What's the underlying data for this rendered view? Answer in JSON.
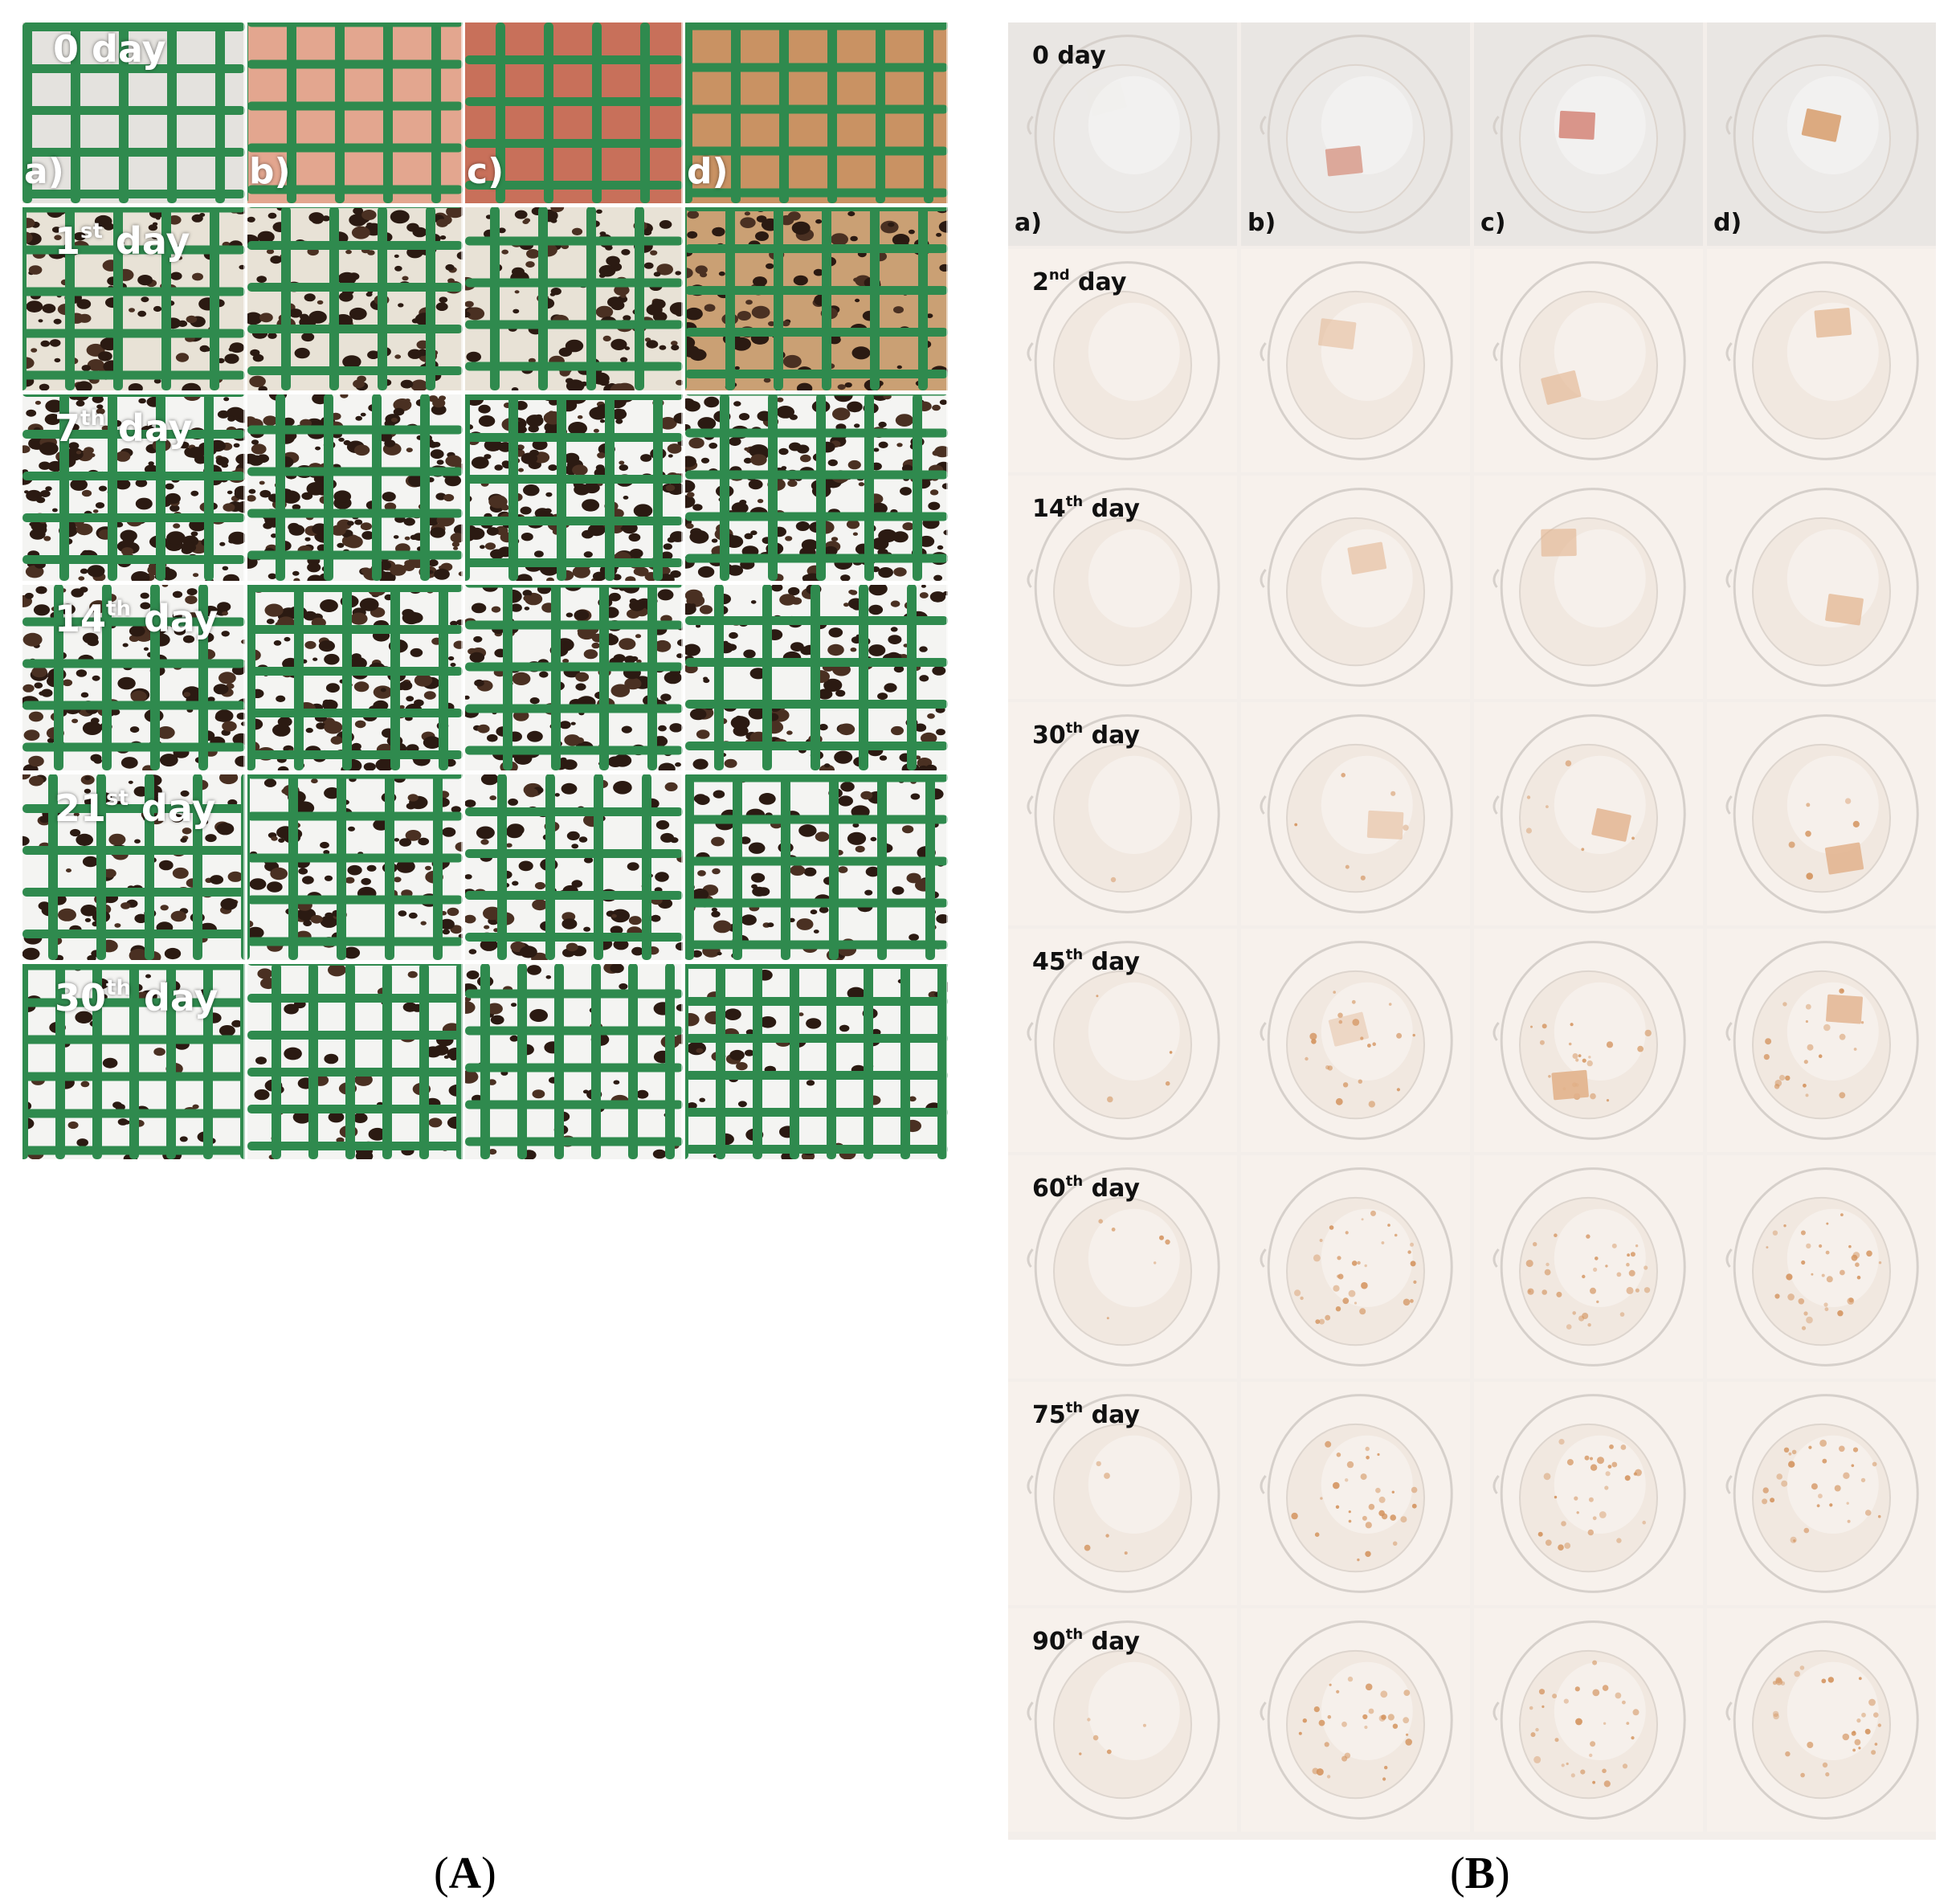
{
  "panel_a": {
    "caption": "A",
    "rows": [
      {
        "day_num": "0",
        "sup": "",
        "suffix": " day"
      },
      {
        "day_num": "1",
        "sup": "st",
        "suffix": " day"
      },
      {
        "day_num": "7",
        "sup": "th",
        "suffix": " day"
      },
      {
        "day_num": "14",
        "sup": "th",
        "suffix": " day"
      },
      {
        "day_num": "21",
        "sup": "st",
        "suffix": " day"
      },
      {
        "day_num": "30",
        "sup": "th",
        "suffix": " day"
      }
    ],
    "column_labels": [
      "a)",
      "b)",
      "c)",
      "d)"
    ],
    "colors": {
      "mesh": "#2f8a4e",
      "sample_a": "#e4e2de",
      "sample_b": "#e3a68f",
      "sample_c": "#c8705a",
      "sample_d": "#c99263",
      "soil": "#2b1a12",
      "background": "#f4f4f2"
    }
  },
  "panel_b": {
    "caption": "B",
    "rows": [
      {
        "day_num": "0",
        "sup": "",
        "suffix": " day"
      },
      {
        "day_num": "2",
        "sup": "nd",
        "suffix": " day"
      },
      {
        "day_num": "14",
        "sup": "th",
        "suffix": " day"
      },
      {
        "day_num": "30",
        "sup": "th",
        "suffix": " day"
      },
      {
        "day_num": "45",
        "sup": "th",
        "suffix": " day"
      },
      {
        "day_num": "60",
        "sup": "th",
        "suffix": " day"
      },
      {
        "day_num": "75",
        "sup": "th",
        "suffix": " day"
      },
      {
        "day_num": "90",
        "sup": "th",
        "suffix": " day"
      }
    ],
    "column_labels": [
      "a)",
      "b)",
      "c)",
      "d)"
    ],
    "colors": {
      "background": "#f3eeea",
      "beaker_rim": "#d6d0cb",
      "water": "#f1e8e0",
      "film": "#e2b28c",
      "residue": "#d3925c"
    }
  }
}
